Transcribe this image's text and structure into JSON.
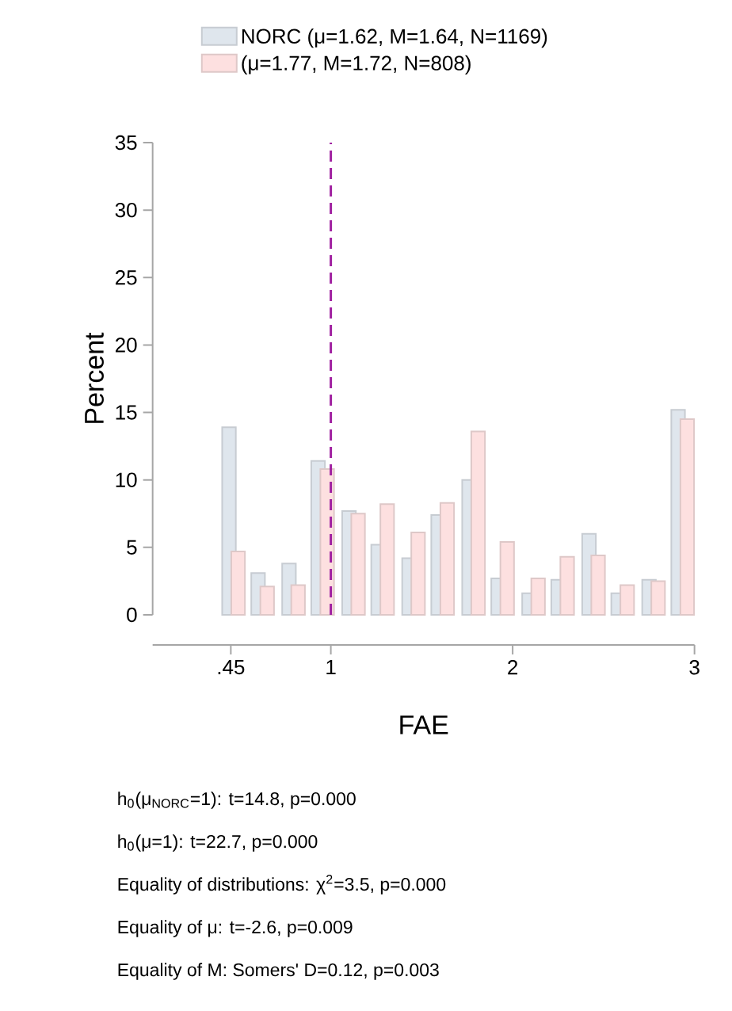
{
  "chart_data": {
    "type": "bar",
    "xlabel": "FAE",
    "ylabel": "Percent",
    "series": [
      {
        "name": "NORC (μ=1.62, M=1.64, N=1169)",
        "color": "#dfe6ed",
        "x": [
          0.44,
          0.6,
          0.77,
          0.93,
          1.1,
          1.26,
          1.43,
          1.59,
          1.76,
          1.92,
          2.09,
          2.25,
          2.42,
          2.58,
          2.75,
          2.91
        ],
        "values": [
          13.9,
          3.1,
          3.8,
          11.4,
          7.7,
          5.2,
          4.2,
          7.4,
          10.0,
          2.7,
          1.6,
          2.6,
          6.0,
          1.6,
          2.6,
          15.2
        ]
      },
      {
        "name": "(μ=1.77, M=1.72, N=808)",
        "color": "#fde0e0",
        "x": [
          0.49,
          0.65,
          0.82,
          0.98,
          1.15,
          1.31,
          1.48,
          1.64,
          1.81,
          1.97,
          2.14,
          2.3,
          2.47,
          2.63,
          2.8,
          2.96
        ],
        "values": [
          4.7,
          2.1,
          2.2,
          10.8,
          7.5,
          8.2,
          6.1,
          8.3,
          13.6,
          5.4,
          2.7,
          4.3,
          4.4,
          2.2,
          2.5,
          14.5
        ]
      }
    ],
    "xlim": [
      0.02,
      3.0
    ],
    "xticks": [
      {
        "value": 0.45,
        "label": ".45"
      },
      1,
      2,
      3
    ],
    "ylim": [
      0,
      35
    ],
    "yticks": [
      0,
      5,
      10,
      15,
      20,
      25,
      30,
      35
    ],
    "ref_lines": [
      {
        "axis": "x",
        "value": 1,
        "color": "#a020a0",
        "line_style": "dashed"
      }
    ],
    "legend": "top",
    "annotations": [
      "h$_{0}$(μ$_{NORC}$=1): t=14.8, p=0.000",
      "h$_{0}$(μ=1): t=22.7, p=0.000",
      "Equality of distributions: χ$^{2}$=3.5, p=0.000",
      "Equality of μ: t=-2.6, p=0.009",
      "Equality of M: Somers' D=0.12, p=0.003"
    ]
  }
}
